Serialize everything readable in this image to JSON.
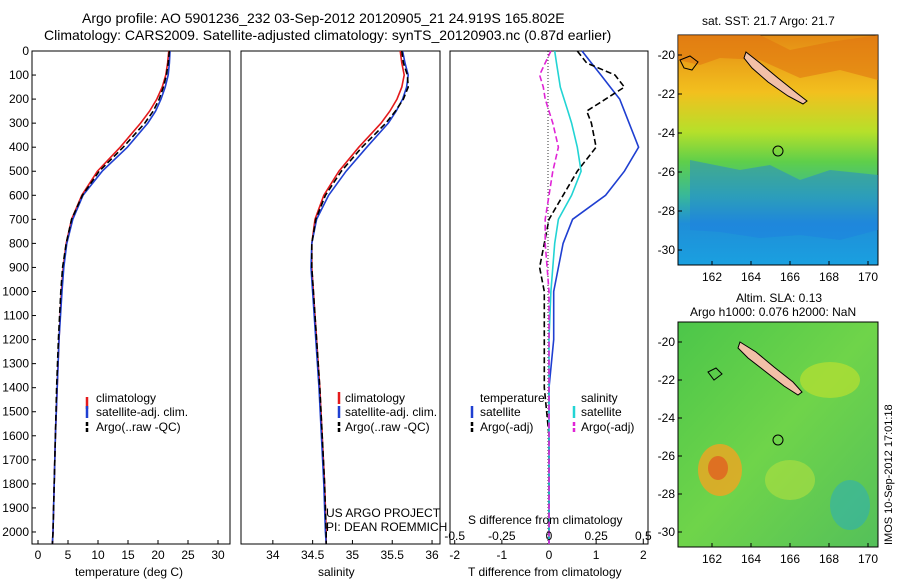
{
  "header": {
    "title_line1": "Argo profile: AO 5901236_232 03-Sep-2012 20120905_21 24.919S 165.802E",
    "title_line2": "Climatology: CARS2009. Satellite-adjusted climatology: synTS_20120903.nc (0.87d earlier)"
  },
  "colors": {
    "climatology": "#e41a1c",
    "satellite": "#1f3fd1",
    "argo": "#000000",
    "salinity_sat": "#22d4d4",
    "salinity_argo": "#e024d6"
  },
  "chart_data": [
    {
      "type": "line",
      "xlabel": "temperature (deg C)",
      "xlim": [
        -1,
        32
      ],
      "xticks": [
        0,
        5,
        10,
        15,
        20,
        25,
        30
      ],
      "ylim": [
        0,
        2050
      ],
      "yticks": [
        0,
        100,
        200,
        300,
        400,
        500,
        600,
        700,
        800,
        900,
        1000,
        1100,
        1200,
        1300,
        1400,
        1500,
        1600,
        1700,
        1800,
        1900,
        2000
      ],
      "legend": [
        "climatology",
        "satellite-adj. clim.",
        "Argo(..raw -QC)"
      ],
      "depth": [
        0,
        50,
        100,
        150,
        200,
        250,
        300,
        400,
        500,
        600,
        700,
        800,
        900,
        1000,
        1200,
        1400,
        1600,
        1800,
        2000,
        2050
      ],
      "series": [
        {
          "name": "climatology",
          "values": [
            21.8,
            21.6,
            21.3,
            20.7,
            19.8,
            18.6,
            17.1,
            13.7,
            9.9,
            7.3,
            5.6,
            4.7,
            4.2,
            3.9,
            3.5,
            3.2,
            2.9,
            2.7,
            2.5,
            2.4
          ]
        },
        {
          "name": "satellite-adj. clim.",
          "values": [
            22.0,
            21.9,
            21.7,
            21.2,
            20.5,
            19.6,
            18.3,
            14.9,
            10.7,
            7.5,
            5.8,
            4.8,
            4.3,
            4.0,
            3.5,
            3.2,
            2.9,
            2.7,
            2.5,
            2.4
          ]
        },
        {
          "name": "Argo(..raw -QC)",
          "values": [
            21.9,
            21.7,
            21.4,
            20.9,
            20.2,
            19.2,
            17.8,
            14.2,
            10.2,
            7.4,
            5.6,
            4.7,
            4.1,
            3.8,
            3.4,
            3.1,
            2.9,
            2.7,
            2.5,
            2.4
          ]
        }
      ]
    },
    {
      "type": "line",
      "xlabel": "salinity",
      "xlim": [
        33.6,
        36.1
      ],
      "xticks": [
        34,
        34.5,
        35,
        35.5,
        36
      ],
      "legend": [
        "climatology",
        "satellite-adj. clim.",
        "Argo(..raw -QC)"
      ],
      "annotation": [
        "US ARGO PROJECT",
        "PI: DEAN ROEMMICH"
      ],
      "depth": [
        0,
        50,
        100,
        150,
        200,
        250,
        300,
        400,
        500,
        600,
        700,
        800,
        900,
        1000,
        1200,
        1400,
        1600,
        1800,
        2000,
        2050
      ],
      "series": [
        {
          "name": "climatology",
          "values": [
            35.6,
            35.62,
            35.65,
            35.62,
            35.56,
            35.47,
            35.36,
            35.08,
            34.83,
            34.64,
            34.53,
            34.49,
            34.49,
            34.51,
            34.55,
            34.59,
            34.62,
            34.65,
            34.67,
            34.67
          ]
        },
        {
          "name": "satellite-adj. clim.",
          "values": [
            35.63,
            35.66,
            35.7,
            35.68,
            35.63,
            35.55,
            35.45,
            35.18,
            34.92,
            34.7,
            34.55,
            34.49,
            34.48,
            34.5,
            34.54,
            34.58,
            34.61,
            34.64,
            34.66,
            34.67
          ]
        },
        {
          "name": "Argo(..raw -QC)",
          "values": [
            35.62,
            35.64,
            35.69,
            35.7,
            35.64,
            35.54,
            35.42,
            35.12,
            34.86,
            34.66,
            34.54,
            34.49,
            34.49,
            34.51,
            34.55,
            34.59,
            34.62,
            34.65,
            34.67,
            34.67
          ]
        }
      ]
    },
    {
      "type": "line",
      "xlabel": "T difference from climatology",
      "x2label": "S difference from climatology",
      "xlim": [
        -2.1,
        2.1
      ],
      "xticks": [
        -2,
        -1,
        0,
        1,
        2
      ],
      "x2ticks": [
        "-0.5",
        "-0.25",
        "0",
        "0.25",
        "0.5"
      ],
      "legend_temperature": [
        "temperature",
        "satellite",
        "Argo(-adj)"
      ],
      "legend_salinity": [
        "salinity",
        "satellite",
        "Argo(-adj)"
      ],
      "depth": [
        0,
        50,
        100,
        150,
        200,
        250,
        300,
        400,
        500,
        600,
        700,
        800,
        900,
        1000,
        1200,
        1400,
        1600,
        1800,
        2000,
        2050
      ],
      "series": [
        {
          "name": "temperature satellite",
          "values": [
            0.7,
            0.9,
            1.1,
            1.3,
            1.5,
            1.6,
            1.7,
            1.9,
            1.6,
            1.2,
            0.5,
            0.3,
            0.2,
            0.1,
            0.1,
            0.0,
            0.0,
            0.0,
            0.0,
            0.0
          ]
        },
        {
          "name": "temperature Argo(-adj)",
          "values": [
            0.6,
            0.8,
            1.4,
            1.6,
            1.2,
            0.8,
            0.9,
            1.0,
            0.6,
            0.3,
            0.0,
            -0.1,
            -0.2,
            -0.1,
            -0.1,
            -0.1,
            0.0,
            0.0,
            0.0,
            0.0
          ]
        },
        {
          "name": "salinity satellite",
          "values": [
            0.03,
            0.04,
            0.05,
            0.06,
            0.08,
            0.1,
            0.12,
            0.15,
            0.17,
            0.12,
            0.05,
            0.03,
            0.02,
            0.01,
            0.0,
            0.0,
            0.0,
            0.0,
            0.0,
            0.0
          ]
        },
        {
          "name": "salinity Argo(-adj)",
          "values": [
            0.01,
            -0.02,
            -0.05,
            -0.03,
            -0.02,
            0.0,
            0.02,
            0.05,
            0.02,
            0.0,
            -0.02,
            -0.02,
            -0.01,
            0.0,
            0.0,
            0.0,
            0.0,
            0.0,
            0.0,
            0.0
          ]
        }
      ]
    },
    {
      "type": "heatmap",
      "title": "sat. SST: 21.7 Argo: 21.7",
      "xticks": [
        162,
        164,
        166,
        168,
        170
      ],
      "yticks": [
        -20,
        -22,
        -24,
        -26,
        -28,
        -30
      ]
    },
    {
      "type": "heatmap",
      "title": [
        "Altim. SLA: 0.13",
        "Argo h1000: 0.076 h2000: NaN"
      ],
      "xticks": [
        162,
        164,
        166,
        168,
        170
      ],
      "yticks": [
        -20,
        -22,
        -24,
        -26,
        -28,
        -30
      ]
    }
  ],
  "footer": {
    "stamp": "IMOS 10-Sep-2012 17:01:18"
  }
}
